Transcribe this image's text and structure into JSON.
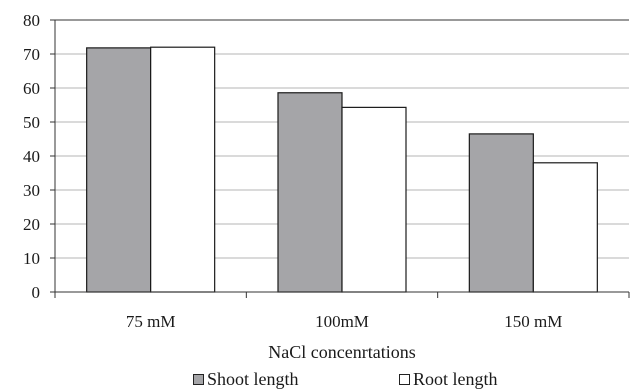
{
  "chart_data": {
    "type": "bar",
    "xlabel": "NaCl concenrtations",
    "ylabel": "",
    "ylim": [
      0,
      80
    ],
    "yticks": [
      0,
      10,
      20,
      30,
      40,
      50,
      60,
      70,
      80
    ],
    "categories": [
      "75 mM",
      "100mM",
      "150 mM"
    ],
    "series": [
      {
        "name": "Shoot length",
        "color": "#a5a5a8",
        "values": [
          71.8,
          58.6,
          46.5
        ]
      },
      {
        "name": "Root length",
        "color": "#ffffff",
        "values": [
          72.0,
          54.3,
          38.0
        ]
      }
    ],
    "grid": true,
    "legend_position": "bottom"
  }
}
